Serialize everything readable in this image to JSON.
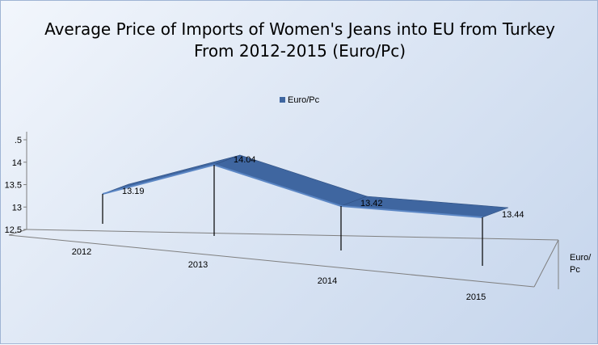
{
  "chart_data": {
    "type": "area",
    "title": "Average Price of Imports of Women's Jeans into EU from Turkey",
    "subtitle": "From 2012-2015  (Euro/Pc)",
    "categories": [
      "2012",
      "2013",
      "2014",
      "2015"
    ],
    "series": [
      {
        "name": "Euro/Pc",
        "values": [
          13.19,
          14.04,
          13.42,
          13.44
        ]
      }
    ],
    "data_labels": [
      "13.19",
      "14.04",
      "13.42",
      "13.44"
    ],
    "y_ticks": [
      ".5",
      "14",
      "13.5",
      "13",
      "12.5"
    ],
    "ylim": [
      12.5,
      14.5
    ],
    "depth_axis_label": [
      "Euro/",
      "Pc"
    ],
    "legend_position": "top-center",
    "colors": {
      "series": "#3f66a0",
      "series_top": "#5b86c4"
    }
  }
}
